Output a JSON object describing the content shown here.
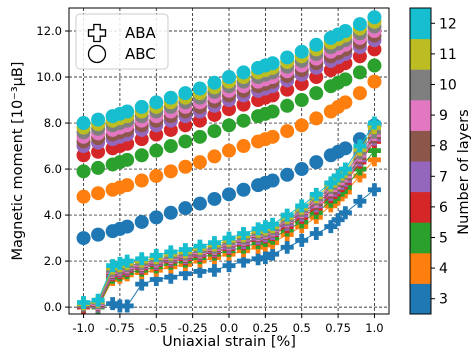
{
  "chart_data": {
    "type": "scatter",
    "xlabel": "Uniaxial strain [%]",
    "ylabel": "Magnetic moment [10⁻³μB]",
    "xlim": [
      -1.1,
      1.1
    ],
    "ylim": [
      -0.3,
      13.0
    ],
    "x_ticks": [
      "-1.0",
      "-0.75",
      "-0.5",
      "-0.25",
      "0.0",
      "0.25",
      "0.5",
      "0.75",
      "1.0"
    ],
    "y_ticks": [
      "0.0",
      "2.0",
      "4.0",
      "6.0",
      "8.0",
      "10.0",
      "12.0"
    ],
    "grid": "dashed",
    "legend": {
      "position": "top-left",
      "entries": [
        {
          "label": "ABA",
          "marker": "plus"
        },
        {
          "label": "ABC",
          "marker": "circle"
        }
      ]
    },
    "colorbar": {
      "label": "Number of layers",
      "ticks": [
        "3",
        "4",
        "5",
        "6",
        "7",
        "8",
        "9",
        "10",
        "11",
        "12"
      ]
    },
    "layer_colors": {
      "3": "#1f77b4",
      "4": "#ff7f0e",
      "5": "#2ca02c",
      "6": "#d62728",
      "7": "#9467bd",
      "8": "#8c564b",
      "9": "#e377c2",
      "10": "#7f7f7f",
      "11": "#bcbd22",
      "12": "#17becf"
    },
    "x": [
      -1.0,
      -0.9,
      -0.8,
      -0.75,
      -0.7,
      -0.6,
      -0.5,
      -0.4,
      -0.3,
      -0.2,
      -0.1,
      0.0,
      0.1,
      0.2,
      0.25,
      0.3,
      0.4,
      0.5,
      0.6,
      0.7,
      0.75,
      0.8,
      0.9,
      1.0
    ],
    "series": [
      {
        "layers": 12,
        "stacking": "ABC",
        "values": [
          8.0,
          8.15,
          8.3,
          8.4,
          8.5,
          8.7,
          8.9,
          9.1,
          9.3,
          9.5,
          9.75,
          10.0,
          10.2,
          10.4,
          10.5,
          10.6,
          10.85,
          11.1,
          11.4,
          11.7,
          11.85,
          12.0,
          12.3,
          12.6
        ]
      },
      {
        "layers": 11,
        "stacking": "ABC",
        "values": [
          7.8,
          7.95,
          8.1,
          8.2,
          8.3,
          8.5,
          8.7,
          8.9,
          9.1,
          9.3,
          9.55,
          9.8,
          10.0,
          10.2,
          10.3,
          10.4,
          10.65,
          10.9,
          11.2,
          11.5,
          11.65,
          11.8,
          12.1,
          12.4
        ]
      },
      {
        "layers": 10,
        "stacking": "ABC",
        "values": [
          7.6,
          7.75,
          7.9,
          8.0,
          8.1,
          8.3,
          8.5,
          8.7,
          8.9,
          9.1,
          9.35,
          9.6,
          9.8,
          10.0,
          10.1,
          10.2,
          10.45,
          10.7,
          11.0,
          11.3,
          11.45,
          11.6,
          11.9,
          12.2
        ]
      },
      {
        "layers": 9,
        "stacking": "ABC",
        "values": [
          7.4,
          7.55,
          7.7,
          7.8,
          7.9,
          8.1,
          8.3,
          8.5,
          8.7,
          8.9,
          9.15,
          9.4,
          9.6,
          9.8,
          9.9,
          10.0,
          10.25,
          10.5,
          10.8,
          11.1,
          11.25,
          11.4,
          11.7,
          12.0
        ]
      },
      {
        "layers": 8,
        "stacking": "ABC",
        "values": [
          7.2,
          7.35,
          7.5,
          7.6,
          7.7,
          7.9,
          8.1,
          8.3,
          8.5,
          8.7,
          8.95,
          9.2,
          9.4,
          9.6,
          9.7,
          9.8,
          10.05,
          10.3,
          10.6,
          10.9,
          11.05,
          11.2,
          11.5,
          11.8
        ]
      },
      {
        "layers": 7,
        "stacking": "ABC",
        "values": [
          7.0,
          7.15,
          7.3,
          7.4,
          7.5,
          7.7,
          7.9,
          8.1,
          8.3,
          8.5,
          8.75,
          9.0,
          9.2,
          9.4,
          9.5,
          9.6,
          9.85,
          10.1,
          10.4,
          10.7,
          10.85,
          11.0,
          11.3,
          11.6
        ]
      },
      {
        "layers": 6,
        "stacking": "ABC",
        "values": [
          6.6,
          6.75,
          6.9,
          7.0,
          7.1,
          7.3,
          7.5,
          7.7,
          7.9,
          8.1,
          8.35,
          8.6,
          8.8,
          9.0,
          9.1,
          9.2,
          9.45,
          9.7,
          10.0,
          10.3,
          10.45,
          10.6,
          10.9,
          11.2
        ]
      },
      {
        "layers": 5,
        "stacking": "ABC",
        "values": [
          5.9,
          6.05,
          6.2,
          6.3,
          6.4,
          6.6,
          6.8,
          7.0,
          7.2,
          7.4,
          7.65,
          7.9,
          8.1,
          8.3,
          8.4,
          8.5,
          8.75,
          9.0,
          9.3,
          9.6,
          9.75,
          9.9,
          10.2,
          10.5
        ]
      },
      {
        "layers": 4,
        "stacking": "ABC",
        "values": [
          4.8,
          4.95,
          5.1,
          5.2,
          5.3,
          5.5,
          5.7,
          5.9,
          6.1,
          6.3,
          6.55,
          6.8,
          7.0,
          7.2,
          7.3,
          7.4,
          7.65,
          7.9,
          8.2,
          8.5,
          8.7,
          8.9,
          9.3,
          9.8
        ]
      },
      {
        "layers": 3,
        "stacking": "ABC",
        "values": [
          3.0,
          3.15,
          3.3,
          3.4,
          3.5,
          3.7,
          3.9,
          4.1,
          4.3,
          4.5,
          4.7,
          4.9,
          5.1,
          5.3,
          5.4,
          5.5,
          5.75,
          6.0,
          6.3,
          6.6,
          6.75,
          6.9,
          7.3,
          7.9
        ]
      },
      {
        "layers": 12,
        "stacking": "ABA",
        "values": [
          0.2,
          0.3,
          1.8,
          1.9,
          2.0,
          2.1,
          2.25,
          2.4,
          2.5,
          2.65,
          2.8,
          3.0,
          3.2,
          3.4,
          3.5,
          3.6,
          4.0,
          4.4,
          4.9,
          5.4,
          5.7,
          6.0,
          7.0,
          8.0
        ]
      },
      {
        "layers": 11,
        "stacking": "ABA",
        "values": [
          0.15,
          0.25,
          1.7,
          1.8,
          1.9,
          2.0,
          2.15,
          2.3,
          2.4,
          2.55,
          2.7,
          2.9,
          3.1,
          3.3,
          3.4,
          3.5,
          3.9,
          4.3,
          4.8,
          5.3,
          5.6,
          5.9,
          6.85,
          7.8
        ]
      },
      {
        "layers": 10,
        "stacking": "ABA",
        "values": [
          0.1,
          0.2,
          1.6,
          1.7,
          1.8,
          1.9,
          2.05,
          2.2,
          2.3,
          2.45,
          2.6,
          2.8,
          3.0,
          3.2,
          3.3,
          3.4,
          3.8,
          4.2,
          4.7,
          5.2,
          5.5,
          5.8,
          6.7,
          7.6
        ]
      },
      {
        "layers": 9,
        "stacking": "ABA",
        "values": [
          0.1,
          0.15,
          1.55,
          1.65,
          1.75,
          1.85,
          2.0,
          2.15,
          2.25,
          2.4,
          2.55,
          2.75,
          2.95,
          3.15,
          3.25,
          3.35,
          3.75,
          4.15,
          4.6,
          5.1,
          5.4,
          5.7,
          6.6,
          7.5
        ]
      },
      {
        "layers": 8,
        "stacking": "ABA",
        "values": [
          0.05,
          0.1,
          1.5,
          1.6,
          1.7,
          1.8,
          1.95,
          2.1,
          2.2,
          2.35,
          2.5,
          2.7,
          2.9,
          3.1,
          3.2,
          3.3,
          3.7,
          4.1,
          4.5,
          5.0,
          5.3,
          5.6,
          6.5,
          7.4
        ]
      },
      {
        "layers": 7,
        "stacking": "ABA",
        "values": [
          0.05,
          0.05,
          1.45,
          1.55,
          1.65,
          1.75,
          1.9,
          2.05,
          2.15,
          2.3,
          2.45,
          2.6,
          2.8,
          3.0,
          3.1,
          3.2,
          3.6,
          4.0,
          4.4,
          4.9,
          5.2,
          5.5,
          6.4,
          7.3
        ]
      },
      {
        "layers": 6,
        "stacking": "ABA",
        "values": [
          0.0,
          0.05,
          1.4,
          1.5,
          1.6,
          1.7,
          1.85,
          2.0,
          2.1,
          2.25,
          2.4,
          2.55,
          2.75,
          2.95,
          3.05,
          3.15,
          3.5,
          3.9,
          4.3,
          4.8,
          5.1,
          5.4,
          6.3,
          7.2
        ]
      },
      {
        "layers": 5,
        "stacking": "ABA",
        "values": [
          0.0,
          0.0,
          1.3,
          1.4,
          1.5,
          1.6,
          1.75,
          1.9,
          2.0,
          2.15,
          2.3,
          2.45,
          2.6,
          2.8,
          2.9,
          3.0,
          3.35,
          3.7,
          4.1,
          4.6,
          4.9,
          5.2,
          6.0,
          6.8
        ]
      },
      {
        "layers": 4,
        "stacking": "ABA",
        "values": [
          0.0,
          0.0,
          1.2,
          1.3,
          1.4,
          1.5,
          1.6,
          1.75,
          1.85,
          2.0,
          2.15,
          2.3,
          2.45,
          2.6,
          2.7,
          2.8,
          3.15,
          3.5,
          3.9,
          4.4,
          4.7,
          5.0,
          5.7,
          6.4
        ]
      },
      {
        "layers": 3,
        "stacking": "ABA",
        "values": [
          0.0,
          0.0,
          0.15,
          0.05,
          0.05,
          1.0,
          1.2,
          1.3,
          1.45,
          1.55,
          1.6,
          1.8,
          2.0,
          2.1,
          2.15,
          2.3,
          2.6,
          2.9,
          3.2,
          3.5,
          3.8,
          4.1,
          4.6,
          5.1
        ]
      }
    ]
  }
}
